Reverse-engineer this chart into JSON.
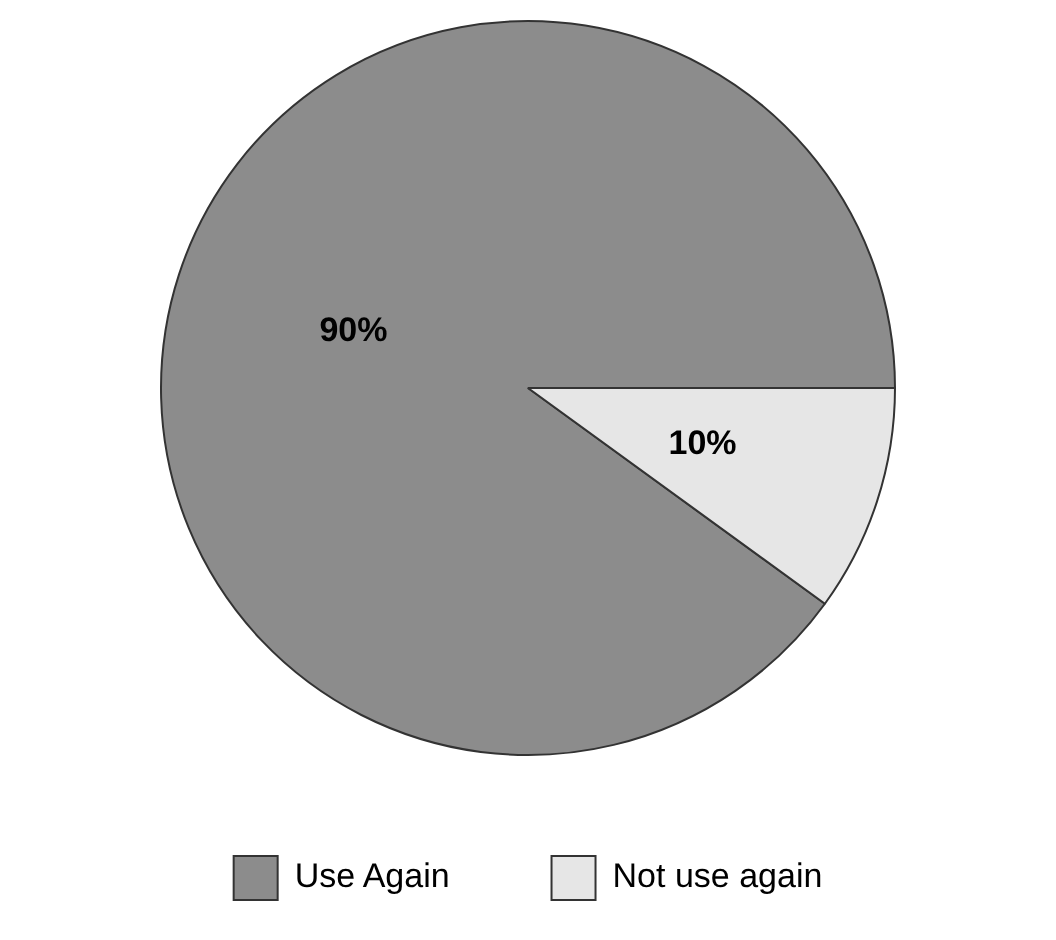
{
  "chart_data": {
    "type": "pie",
    "categories": [
      "Use Again",
      "Not use again"
    ],
    "values": [
      90,
      10
    ],
    "colors": [
      "#8c8c8c",
      "#e6e6e6"
    ],
    "value_labels": [
      "90%",
      "10%"
    ],
    "legend": "bottom"
  }
}
